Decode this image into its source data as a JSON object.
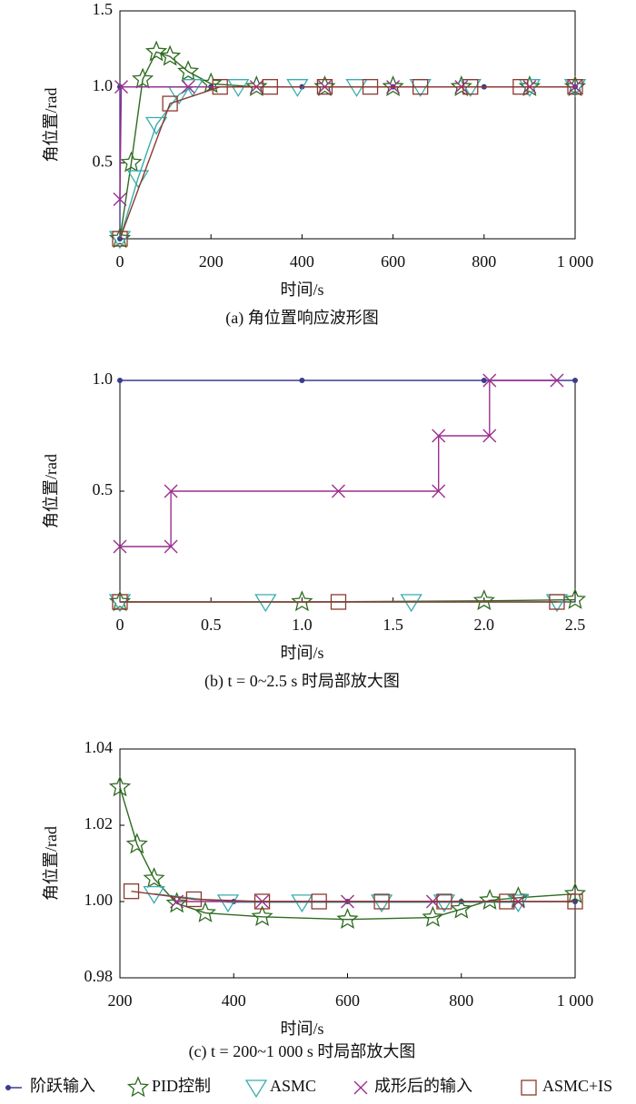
{
  "chart_data": [
    {
      "type": "line",
      "caption": "(a) 角位置响应波形图",
      "xlabel": "时间/s",
      "ylabel": "角位置/rad",
      "xlim": [
        0,
        1000
      ],
      "ylim": [
        0,
        1.5
      ],
      "xticks": [
        0,
        200,
        400,
        600,
        800,
        {
          "value": 1000,
          "label": "1 000"
        }
      ],
      "yticks": [
        0.5,
        {
          "value": 1,
          "label": "1.0"
        },
        1.5
      ],
      "series": [
        {
          "name": "阶跃输入",
          "color": "#3b3b8f",
          "marker": "circle",
          "x": [
            0,
            0,
            200,
            400,
            600,
            800,
            1000
          ],
          "values": [
            0,
            1,
            1,
            1,
            1,
            1,
            1
          ]
        },
        {
          "name": "PID控制",
          "color": "#2e6b1f",
          "marker": "star",
          "x": [
            0,
            25,
            50,
            80,
            110,
            150,
            200,
            300,
            450,
            600,
            750,
            900,
            1000
          ],
          "values": [
            0,
            0.5,
            1.05,
            1.23,
            1.2,
            1.1,
            1.02,
            1.0,
            1,
            1,
            1,
            1,
            1
          ]
        },
        {
          "name": "ASMC",
          "color": "#3aacac",
          "marker": "triangle",
          "x": [
            0,
            40,
            80,
            130,
            160,
            260,
            390,
            520,
            660,
            770,
            900,
            1000
          ],
          "values": [
            0,
            0.4,
            0.75,
            0.95,
            1.0,
            1,
            1,
            1,
            1,
            1,
            1,
            1
          ]
        },
        {
          "name": "成形后的输入",
          "color": "#9b2f8f",
          "marker": "x",
          "x": [
            0,
            3,
            150,
            300,
            450,
            600,
            750,
            900,
            1000
          ],
          "values": [
            0.26,
            1,
            1,
            1,
            1,
            1,
            1,
            1,
            1
          ]
        },
        {
          "name": "ASMC+IS",
          "color": "#8b3a30",
          "marker": "square",
          "x": [
            0,
            110,
            220,
            330,
            450,
            550,
            660,
            770,
            880,
            1000
          ],
          "values": [
            0,
            0.89,
            1.0,
            1,
            1,
            1,
            1,
            1,
            1,
            1
          ]
        }
      ]
    },
    {
      "type": "line",
      "caption": "(b) t = 0~2.5 s 时局部放大图",
      "xlabel": "时间/s",
      "ylabel": "角位置/rad",
      "xlim": [
        0,
        2.5
      ],
      "ylim": [
        0,
        1
      ],
      "xticks": [
        0,
        0.5,
        {
          "value": 1,
          "label": "1.0"
        },
        1.5,
        {
          "value": 2,
          "label": "2.0"
        },
        2.5
      ],
      "yticks": [
        0.5,
        {
          "value": 1,
          "label": "1.0"
        }
      ],
      "series": [
        {
          "name": "阶跃输入",
          "color": "#3b3b8f",
          "marker": "circle",
          "x": [
            0,
            1,
            2,
            2.5
          ],
          "values": [
            1,
            1,
            1,
            1
          ]
        },
        {
          "name": "PID控制",
          "color": "#2e6b1f",
          "marker": "star",
          "x": [
            0,
            1,
            2,
            2.5
          ],
          "values": [
            0,
            0,
            0.005,
            0.01
          ]
        },
        {
          "name": "ASMC",
          "color": "#3aacac",
          "marker": "triangle",
          "x": [
            0,
            0.8,
            1.6,
            2.4
          ],
          "values": [
            0,
            0,
            0,
            0
          ]
        },
        {
          "name": "成形后的输入",
          "color": "#9b2f8f",
          "marker": "x",
          "x": [
            0,
            0.28,
            0.28,
            1.2,
            1.75,
            1.75,
            2.03,
            2.03,
            2.4
          ],
          "values": [
            0.25,
            0.25,
            0.5,
            0.5,
            0.5,
            0.75,
            0.75,
            1,
            1
          ]
        },
        {
          "name": "ASMC+IS",
          "color": "#8b3a30",
          "marker": "square",
          "x": [
            0,
            1.2,
            2.4
          ],
          "values": [
            0,
            0,
            0
          ]
        }
      ]
    },
    {
      "type": "line",
      "caption": "(c) t = 200~1 000 s 时局部放大图",
      "xlabel": "时间/s",
      "ylabel": "角位置/rad",
      "xlim": [
        200,
        1000
      ],
      "ylim": [
        0.98,
        1.04
      ],
      "xticks": [
        200,
        400,
        600,
        800,
        {
          "value": 1000,
          "label": "1 000"
        }
      ],
      "yticks": [
        0.98,
        {
          "value": 1,
          "label": "1.00"
        },
        1.02,
        1.04
      ],
      "series": [
        {
          "name": "阶跃输入",
          "color": "#3b3b8f",
          "marker": "circle",
          "x": [
            400,
            600,
            800,
            1000
          ],
          "values": [
            1,
            1,
            1,
            1
          ]
        },
        {
          "name": "PID控制",
          "color": "#2e6b1f",
          "marker": "star",
          "x": [
            200,
            230,
            260,
            300,
            350,
            450,
            600,
            750,
            800,
            850,
            900,
            1000
          ],
          "values": [
            1.03,
            1.015,
            1.006,
            0.9995,
            0.997,
            0.996,
            0.9953,
            0.9958,
            0.998,
            1.0003,
            1.001,
            1.002
          ]
        },
        {
          "name": "ASMC",
          "color": "#3aacac",
          "marker": "triangle",
          "x": [
            260,
            390,
            520,
            660,
            770,
            900
          ],
          "values": [
            1.002,
            0.9998,
            0.9998,
            0.9998,
            0.9998,
            0.9998
          ]
        },
        {
          "name": "成形后的输入",
          "color": "#9b2f8f",
          "marker": "x",
          "x": [
            300,
            450,
            600,
            750,
            900
          ],
          "values": [
            1,
            1,
            1,
            1,
            1
          ]
        },
        {
          "name": "ASMC+IS",
          "color": "#8b3a30",
          "marker": "square",
          "x": [
            220,
            330,
            450,
            550,
            660,
            770,
            880,
            1000
          ],
          "values": [
            1.0027,
            1.0006,
            1,
            1,
            1,
            1,
            1,
            1
          ]
        }
      ]
    }
  ]
}
